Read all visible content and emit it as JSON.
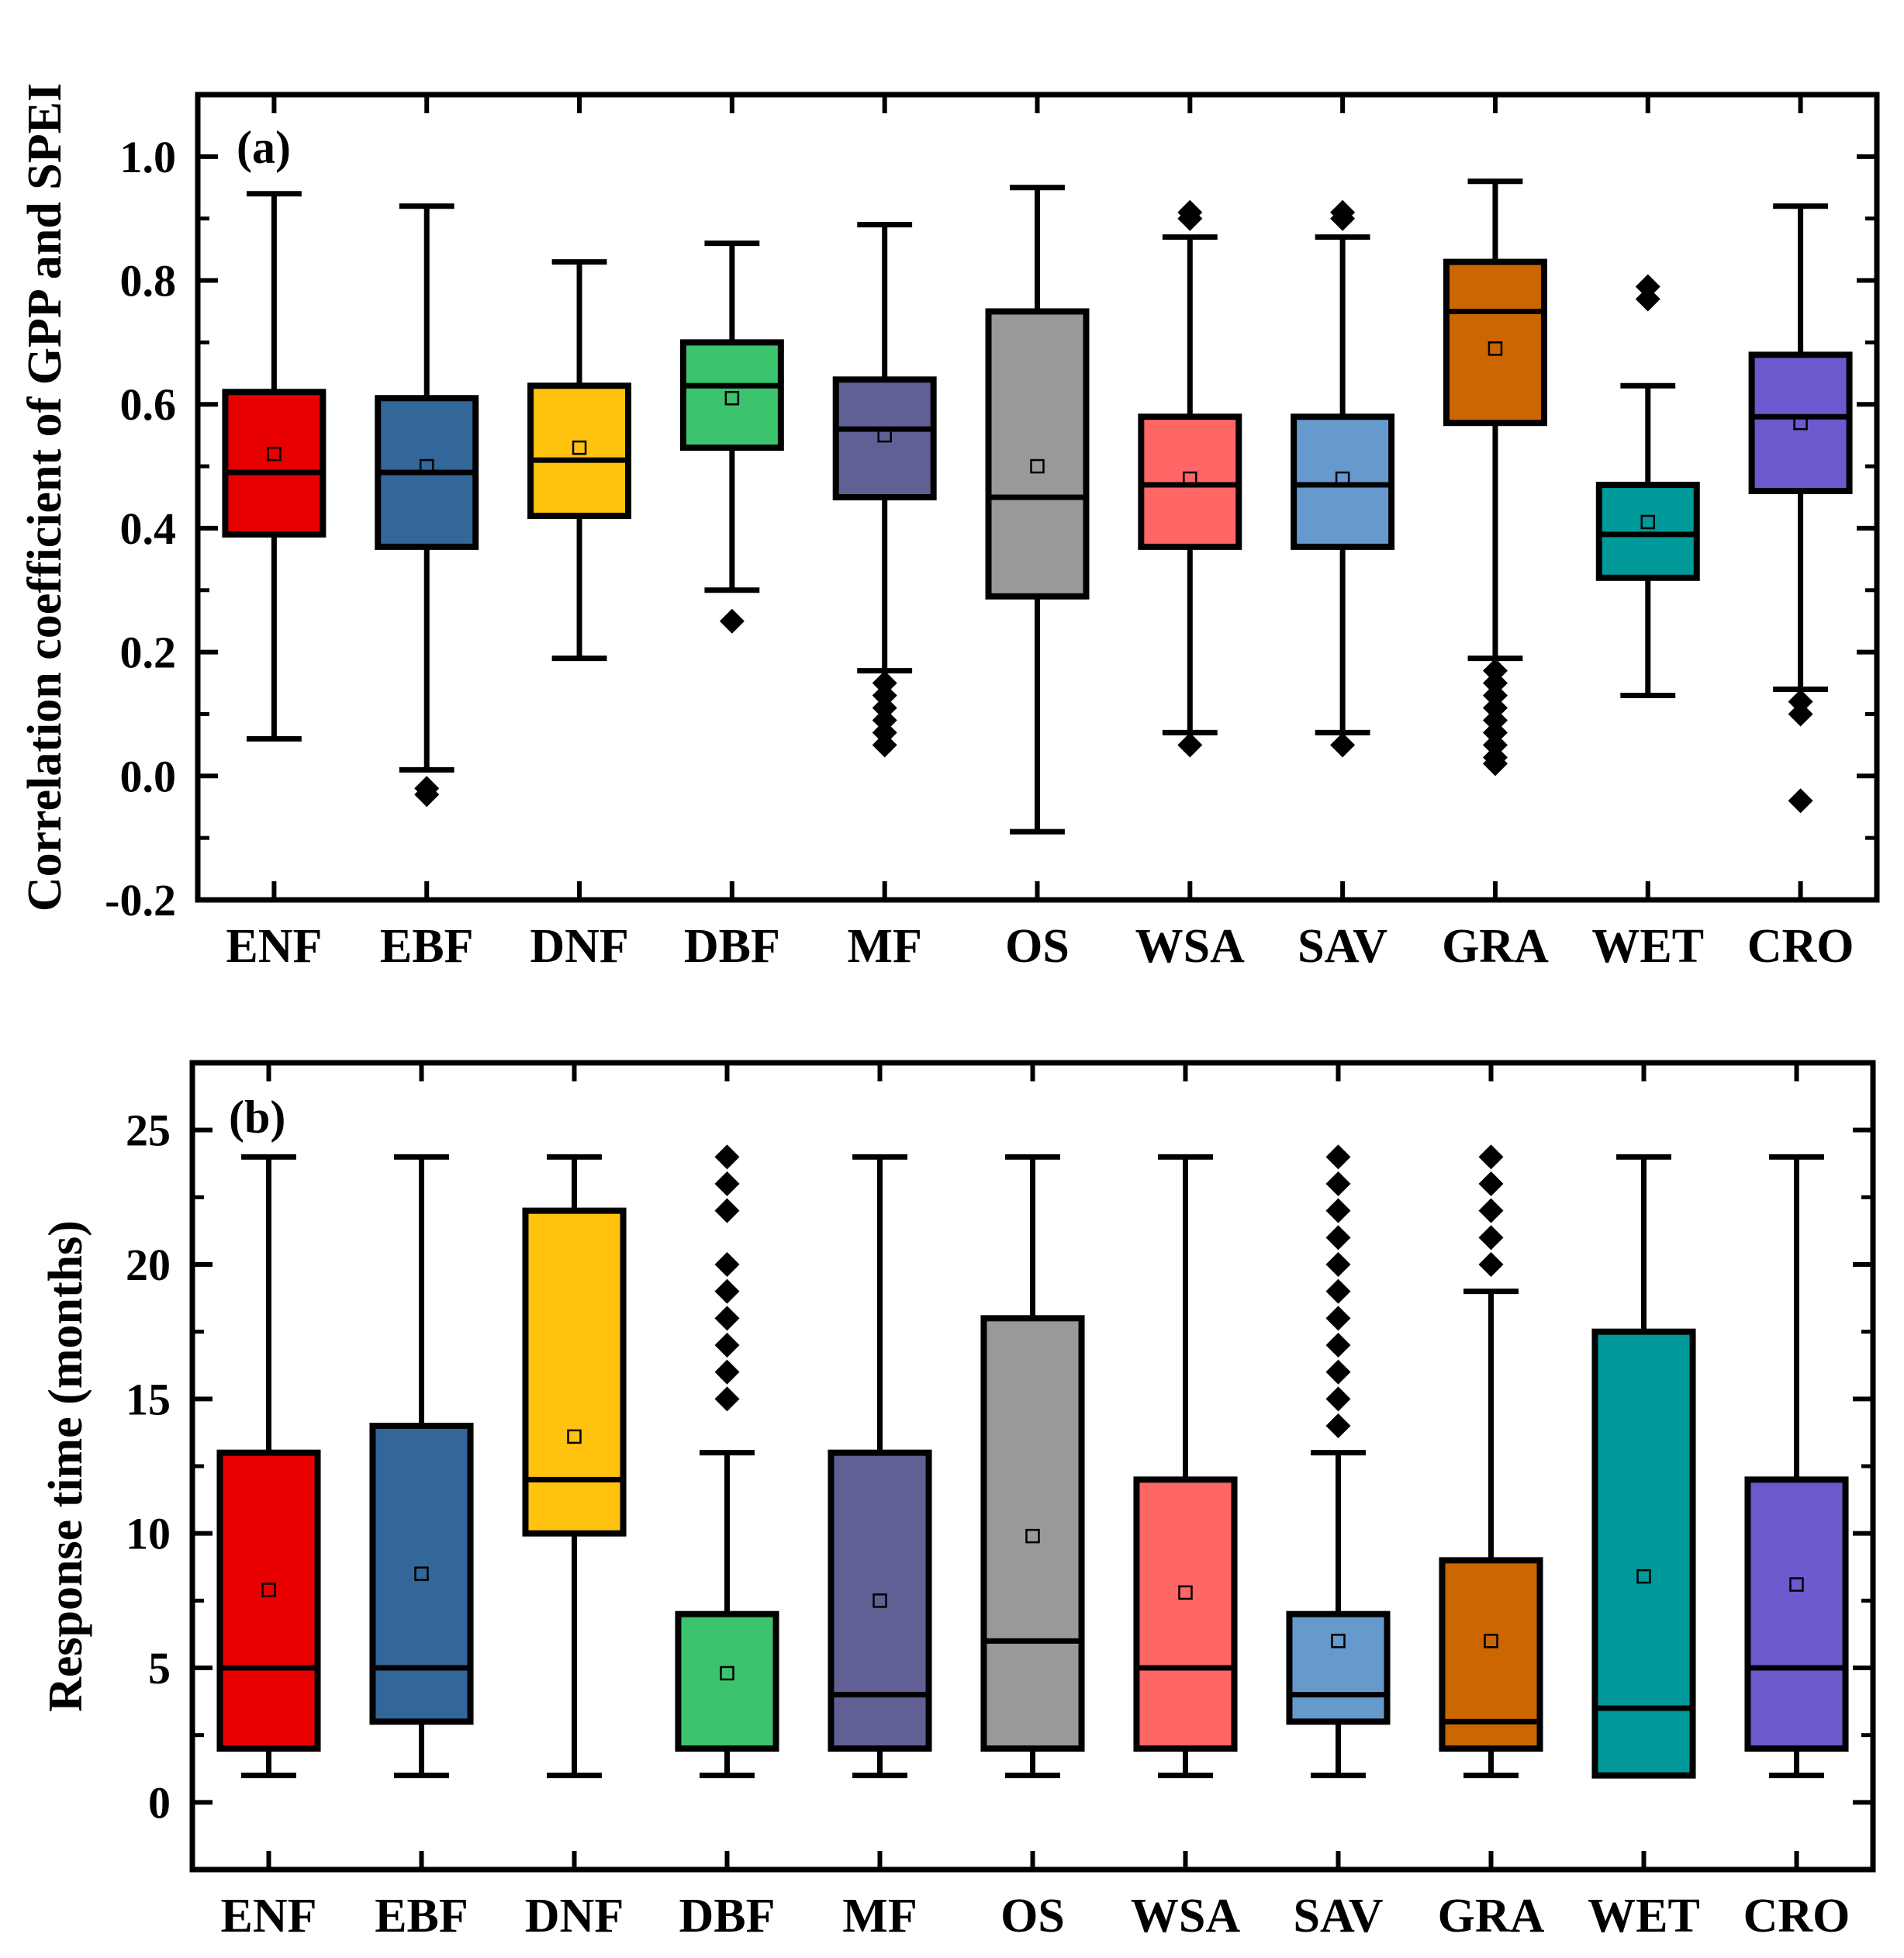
{
  "chart_data": [
    {
      "panel_label": "(a)",
      "type": "box",
      "ylabel": "Correlation coefficient of GPP and SPEI",
      "ylim": [
        -0.2,
        1.1
      ],
      "yticks": [
        -0.2,
        0.0,
        0.2,
        0.4,
        0.6,
        0.8,
        1.0
      ],
      "ytick_labels": [
        "-0.2",
        "0.0",
        "0.2",
        "0.4",
        "0.6",
        "0.8",
        "1.0"
      ],
      "categories": [
        "ENF",
        "EBF",
        "DNF",
        "DBF",
        "MF",
        "OS",
        "WSA",
        "SAV",
        "GRA",
        "WET",
        "CRO"
      ],
      "boxes": [
        {
          "category": "ENF",
          "color": "#E80000",
          "whisker_low": 0.06,
          "q1": 0.39,
          "median": 0.49,
          "q3": 0.62,
          "whisker_high": 0.94,
          "mean": 0.52,
          "outliers": []
        },
        {
          "category": "EBF",
          "color": "#336699",
          "whisker_low": 0.01,
          "q1": 0.37,
          "median": 0.49,
          "q3": 0.61,
          "whisker_high": 0.92,
          "mean": 0.5,
          "outliers": [
            -0.02,
            -0.03
          ]
        },
        {
          "category": "DNF",
          "color": "#FFC20E",
          "whisker_low": 0.19,
          "q1": 0.42,
          "median": 0.51,
          "q3": 0.63,
          "whisker_high": 0.83,
          "mean": 0.53,
          "outliers": []
        },
        {
          "category": "DBF",
          "color": "#3CC36E",
          "whisker_low": 0.3,
          "q1": 0.53,
          "median": 0.63,
          "q3": 0.7,
          "whisker_high": 0.86,
          "mean": 0.61,
          "outliers": [
            0.25
          ]
        },
        {
          "category": "MF",
          "color": "#606095",
          "whisker_low": 0.17,
          "q1": 0.45,
          "median": 0.56,
          "q3": 0.64,
          "whisker_high": 0.89,
          "mean": 0.55,
          "outliers": [
            0.15,
            0.13,
            0.11,
            0.09,
            0.07,
            0.05
          ]
        },
        {
          "category": "OS",
          "color": "#999999",
          "whisker_low": -0.09,
          "q1": 0.29,
          "median": 0.45,
          "q3": 0.75,
          "whisker_high": 0.95,
          "mean": 0.5,
          "outliers": []
        },
        {
          "category": "WSA",
          "color": "#FF6666",
          "whisker_low": 0.07,
          "q1": 0.37,
          "median": 0.47,
          "q3": 0.58,
          "whisker_high": 0.87,
          "mean": 0.48,
          "outliers": [
            0.05,
            0.9,
            0.91
          ]
        },
        {
          "category": "SAV",
          "color": "#6699CC",
          "whisker_low": 0.07,
          "q1": 0.37,
          "median": 0.47,
          "q3": 0.58,
          "whisker_high": 0.87,
          "mean": 0.48,
          "outliers": [
            0.05,
            0.9,
            0.91
          ]
        },
        {
          "category": "GRA",
          "color": "#CC6600",
          "whisker_low": 0.19,
          "q1": 0.57,
          "median": 0.75,
          "q3": 0.83,
          "whisker_high": 0.96,
          "mean": 0.69,
          "outliers": [
            0.17,
            0.15,
            0.13,
            0.11,
            0.09,
            0.07,
            0.05,
            0.03,
            0.02
          ]
        },
        {
          "category": "WET",
          "color": "#009999",
          "whisker_low": 0.13,
          "q1": 0.32,
          "median": 0.39,
          "q3": 0.47,
          "whisker_high": 0.63,
          "mean": 0.41,
          "outliers": [
            0.77,
            0.79
          ]
        },
        {
          "category": "CRO",
          "color": "#6A5ACD",
          "whisker_low": 0.14,
          "q1": 0.46,
          "median": 0.58,
          "q3": 0.68,
          "whisker_high": 0.92,
          "mean": 0.57,
          "outliers": [
            0.12,
            0.1,
            -0.04
          ]
        }
      ]
    },
    {
      "panel_label": "(b)",
      "type": "box",
      "ylabel": "Response time (months)",
      "ylim": [
        -2.5,
        27.5
      ],
      "yticks": [
        0,
        5,
        10,
        15,
        20,
        25
      ],
      "ytick_labels": [
        "0",
        "5",
        "10",
        "15",
        "20",
        "25"
      ],
      "categories": [
        "ENF",
        "EBF",
        "DNF",
        "DBF",
        "MF",
        "OS",
        "WSA",
        "SAV",
        "GRA",
        "WET",
        "CRO"
      ],
      "boxes": [
        {
          "category": "ENF",
          "color": "#E80000",
          "whisker_low": 1,
          "q1": 2,
          "median": 5,
          "q3": 13,
          "whisker_high": 24,
          "mean": 7.9,
          "outliers": []
        },
        {
          "category": "EBF",
          "color": "#336699",
          "whisker_low": 1,
          "q1": 3,
          "median": 5,
          "q3": 14,
          "whisker_high": 24,
          "mean": 8.5,
          "outliers": []
        },
        {
          "category": "DNF",
          "color": "#FFC20E",
          "whisker_low": 1,
          "q1": 10,
          "median": 12,
          "q3": 22,
          "whisker_high": 24,
          "mean": 13.6,
          "outliers": []
        },
        {
          "category": "DBF",
          "color": "#3CC36E",
          "whisker_low": 1,
          "q1": 2,
          "median": 2,
          "q3": 7,
          "whisker_high": 13,
          "mean": 4.8,
          "outliers": [
            15,
            16,
            17,
            18,
            19,
            20,
            22,
            23,
            24
          ]
        },
        {
          "category": "MF",
          "color": "#606095",
          "whisker_low": 1,
          "q1": 2,
          "median": 4,
          "q3": 13,
          "whisker_high": 24,
          "mean": 7.5,
          "outliers": []
        },
        {
          "category": "OS",
          "color": "#999999",
          "whisker_low": 1,
          "q1": 2,
          "median": 6,
          "q3": 18,
          "whisker_high": 24,
          "mean": 9.9,
          "outliers": []
        },
        {
          "category": "WSA",
          "color": "#FF6666",
          "whisker_low": 1,
          "q1": 2,
          "median": 5,
          "q3": 12,
          "whisker_high": 24,
          "mean": 7.8,
          "outliers": []
        },
        {
          "category": "SAV",
          "color": "#6699CC",
          "whisker_low": 1,
          "q1": 3,
          "median": 4,
          "q3": 7,
          "whisker_high": 13,
          "mean": 6.0,
          "outliers": [
            14,
            15,
            16,
            17,
            18,
            19,
            20,
            21,
            22,
            23,
            24
          ]
        },
        {
          "category": "GRA",
          "color": "#CC6600",
          "whisker_low": 1,
          "q1": 2,
          "median": 3,
          "q3": 9,
          "whisker_high": 19,
          "mean": 6.0,
          "outliers": [
            20,
            21,
            22,
            23,
            24
          ]
        },
        {
          "category": "WET",
          "color": "#009999",
          "whisker_low": 1,
          "q1": 1,
          "median": 3.5,
          "q3": 17.5,
          "whisker_high": 24,
          "mean": 8.4,
          "outliers": []
        },
        {
          "category": "CRO",
          "color": "#6A5ACD",
          "whisker_low": 1,
          "q1": 2,
          "median": 5,
          "q3": 12,
          "whisker_high": 24,
          "mean": 8.1,
          "outliers": []
        }
      ]
    }
  ]
}
